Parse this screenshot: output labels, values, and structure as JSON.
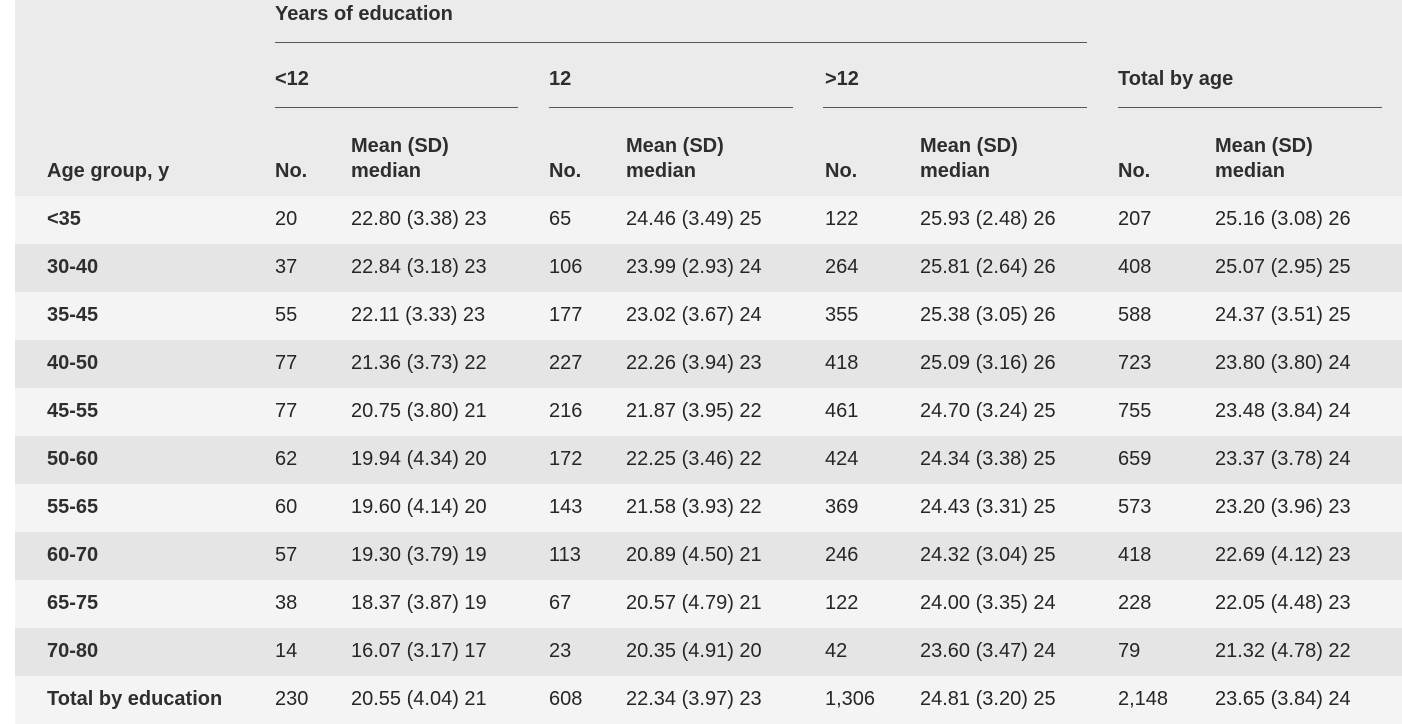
{
  "table": {
    "group_label": "Years of education",
    "row_label": "Age group, y",
    "groups": [
      {
        "label": "<12",
        "no": "No.",
        "mean": [
          "Mean (SD)",
          "median"
        ]
      },
      {
        "label": "12",
        "no": "No.",
        "mean": [
          "Mean (SD)",
          "median"
        ]
      },
      {
        "label": ">12",
        "no": "No.",
        "mean": [
          "Mean (SD)",
          "median"
        ]
      },
      {
        "label": "Total by age",
        "no": "No.",
        "mean": [
          "Mean (SD)",
          "median"
        ]
      }
    ],
    "rows": [
      {
        "label": "<35",
        "cells": [
          "20",
          "22.80 (3.38) 23",
          "65",
          "24.46 (3.49) 25",
          "122",
          "25.93 (2.48) 26",
          "207",
          "25.16 (3.08) 26"
        ]
      },
      {
        "label": "30-40",
        "cells": [
          "37",
          "22.84 (3.18) 23",
          "106",
          "23.99 (2.93) 24",
          "264",
          "25.81 (2.64) 26",
          "408",
          "25.07 (2.95) 25"
        ]
      },
      {
        "label": "35-45",
        "cells": [
          "55",
          "22.11 (3.33) 23",
          "177",
          "23.02 (3.67) 24",
          "355",
          "25.38 (3.05) 26",
          "588",
          "24.37 (3.51) 25"
        ]
      },
      {
        "label": "40-50",
        "cells": [
          "77",
          "21.36 (3.73) 22",
          "227",
          "22.26 (3.94) 23",
          "418",
          "25.09 (3.16) 26",
          "723",
          "23.80 (3.80) 24"
        ]
      },
      {
        "label": "45-55",
        "cells": [
          "77",
          "20.75 (3.80) 21",
          "216",
          "21.87 (3.95) 22",
          "461",
          "24.70 (3.24) 25",
          "755",
          "23.48 (3.84) 24"
        ]
      },
      {
        "label": "50-60",
        "cells": [
          "62",
          "19.94 (4.34) 20",
          "172",
          "22.25 (3.46) 22",
          "424",
          "24.34 (3.38) 25",
          "659",
          "23.37 (3.78) 24"
        ]
      },
      {
        "label": "55-65",
        "cells": [
          "60",
          "19.60 (4.14) 20",
          "143",
          "21.58 (3.93) 22",
          "369",
          "24.43 (3.31) 25",
          "573",
          "23.20 (3.96) 23"
        ]
      },
      {
        "label": "60-70",
        "cells": [
          "57",
          "19.30 (3.79) 19",
          "113",
          "20.89 (4.50) 21",
          "246",
          "24.32 (3.04) 25",
          "418",
          "22.69 (4.12) 23"
        ]
      },
      {
        "label": "65-75",
        "cells": [
          "38",
          "18.37 (3.87) 19",
          "67",
          "20.57 (4.79) 21",
          "122",
          "24.00 (3.35) 24",
          "228",
          "22.05 (4.48) 23"
        ]
      },
      {
        "label": "70-80",
        "cells": [
          "14",
          "16.07 (3.17) 17",
          "23",
          "20.35 (4.91) 20",
          "42",
          "23.60 (3.47) 24",
          "79",
          "21.32 (4.78) 22"
        ]
      },
      {
        "label": "Total by education",
        "cells": [
          "230",
          "20.55 (4.04) 21",
          "608",
          "22.34 (3.97) 23",
          "1,306",
          "24.81 (3.20) 25",
          "2,148",
          "23.65 (3.84) 24"
        ]
      }
    ]
  }
}
